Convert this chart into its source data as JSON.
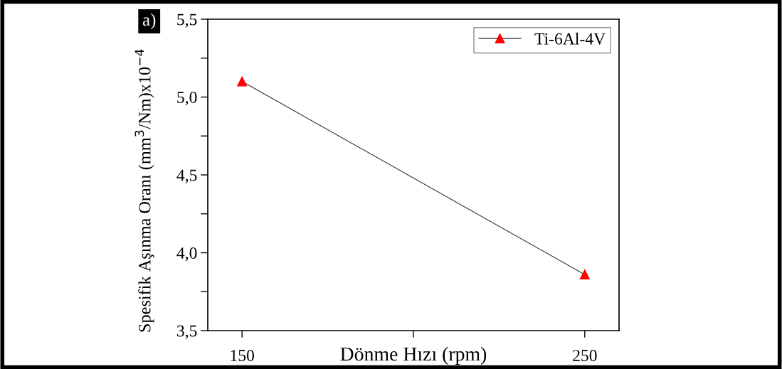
{
  "chart_data": {
    "type": "line",
    "xlabel": "Dönme Hızı (rpm)",
    "ylabel": "Spesifik Aşınma Oranı (mm$^{3}$/Nm)x10$^{−4}$",
    "annotations": [
      "a)"
    ],
    "x": [
      150,
      250
    ],
    "series": [
      {
        "name": "Ti-6Al-4V",
        "color": "#ff0000",
        "values": [
          5.1,
          3.86
        ]
      }
    ],
    "xlim": [
      140,
      260
    ],
    "xticks": [
      150,
      {
        "value": 200,
        "label": null
      },
      250
    ],
    "ylim": [
      3.5,
      5.5
    ],
    "yticks": [
      {
        "value": 3.5,
        "label": "3,5"
      },
      {
        "value": 3.75,
        "label": null
      },
      {
        "value": 4.0,
        "label": "4,0"
      },
      {
        "value": 4.25,
        "label": null
      },
      {
        "value": 4.5,
        "label": "4,5"
      },
      {
        "value": 4.75,
        "label": null
      },
      {
        "value": 5.0,
        "label": "5,0"
      },
      {
        "value": 5.25,
        "label": null
      },
      {
        "value": 5.5,
        "label": "5,5"
      }
    ],
    "marker": "triangle",
    "line_style": "solid",
    "grid": false,
    "legend": "top right"
  }
}
